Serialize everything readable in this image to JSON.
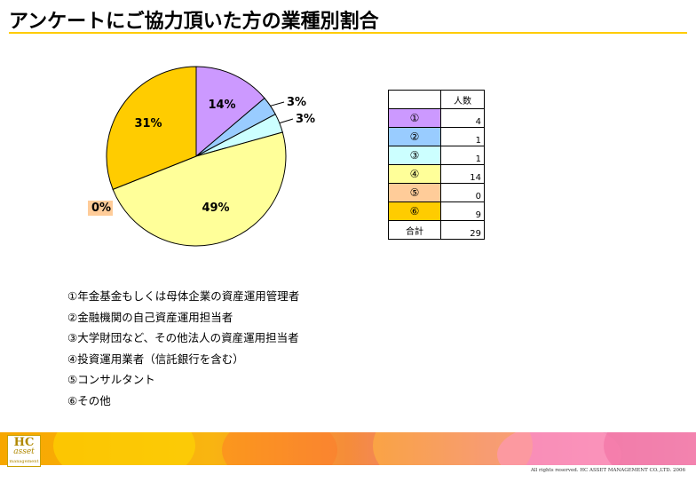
{
  "title": "アンケートにご協力頂いた方の業種別割合",
  "chart_data": {
    "type": "pie",
    "slices": [
      {
        "key": "①",
        "label": "年金基金もしくは母体企業の資産運用管理者",
        "count": 4,
        "percent_label": "14%",
        "color": "#cc99ff"
      },
      {
        "key": "②",
        "label": "金融機関の自己資産運用担当者",
        "count": 1,
        "percent_label": "3%",
        "color": "#99ccff"
      },
      {
        "key": "③",
        "label": "大学財団など、その他法人の資産運用担当者",
        "count": 1,
        "percent_label": "3%",
        "color": "#ccffff"
      },
      {
        "key": "④",
        "label": "投資運用業者（信託銀行を含む）",
        "count": 14,
        "percent_label": "49%",
        "color": "#ffff99"
      },
      {
        "key": "⑤",
        "label": "コンサルタント",
        "count": 0,
        "percent_label": "0%",
        "color": "#ffcc99"
      },
      {
        "key": "⑥",
        "label": "その他",
        "count": 9,
        "percent_label": "31%",
        "color": "#ffcc00"
      }
    ]
  },
  "table": {
    "header": "人数",
    "rows": [
      {
        "key": "①",
        "value": "4",
        "color": "#cc99ff"
      },
      {
        "key": "②",
        "value": "1",
        "color": "#99ccff"
      },
      {
        "key": "③",
        "value": "1",
        "color": "#ccffff"
      },
      {
        "key": "④",
        "value": "14",
        "color": "#ffff99"
      },
      {
        "key": "⑤",
        "value": "0",
        "color": "#ffcc99"
      },
      {
        "key": "⑥",
        "value": "9",
        "color": "#ffcc00"
      }
    ],
    "total_label": "合計",
    "total_value": "29"
  },
  "notes": [
    "①年金基金もしくは母体企業の資産運用管理者",
    "②金融機関の自己資産運用担当者",
    "③大学財団など、その他法人の資産運用担当者",
    "④投資運用業者（信託銀行を含む）",
    "⑤コンサルタント",
    "⑥その他"
  ],
  "logo": {
    "line1": "HC",
    "line2": "asset",
    "line3": "management"
  },
  "copyright": "All rights reserved. HC ASSET MANAGEMENT CO.,LTD. 2006"
}
